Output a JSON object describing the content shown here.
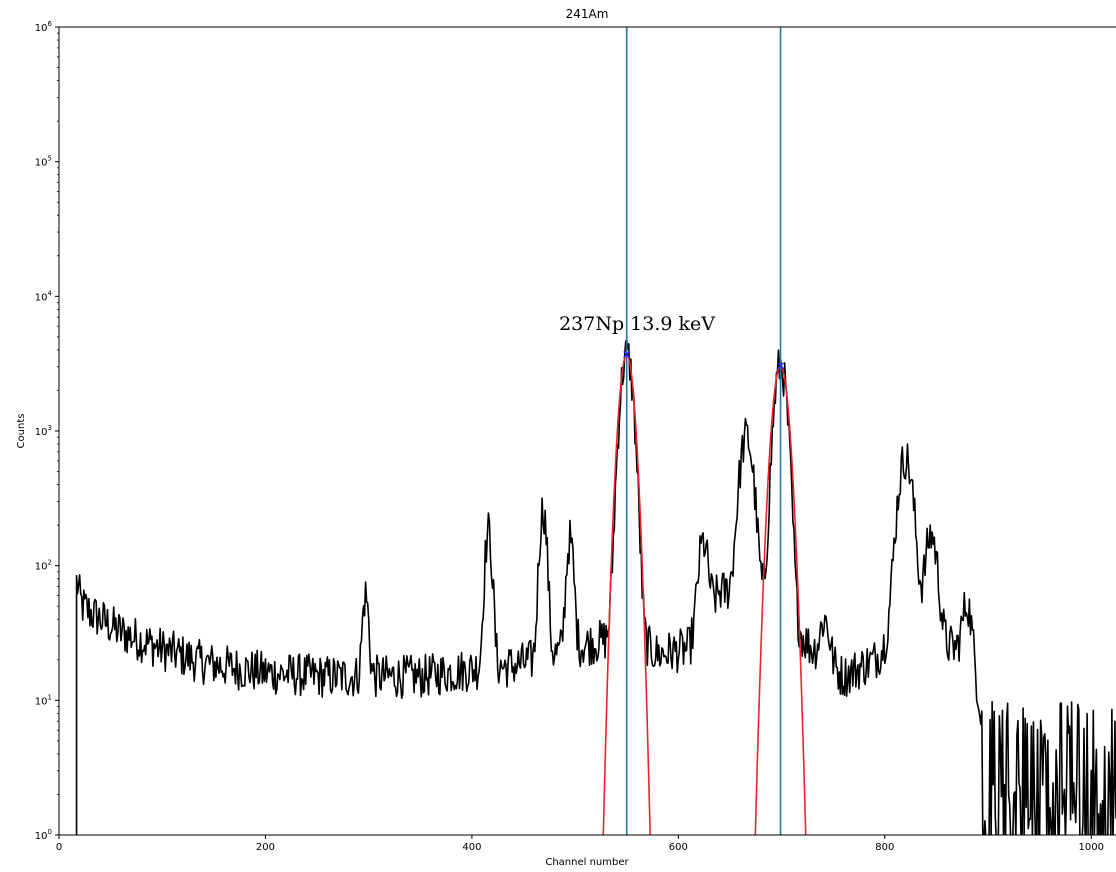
{
  "chart_data": {
    "type": "line",
    "title": "241Am",
    "xlabel": "Channel number",
    "ylabel": "Counts",
    "xlim": [
      0,
      1024
    ],
    "ylim": [
      1,
      1000000
    ],
    "yscale": "log",
    "grid": false,
    "x_ticks": [
      0,
      200,
      400,
      600,
      800,
      1000
    ],
    "x_tick_labels": [
      "0",
      "200",
      "400",
      "600",
      "800",
      "1000"
    ],
    "y_ticks": [
      1,
      10,
      100,
      1000,
      10000,
      100000,
      1000000
    ],
    "y_tick_exponents": [
      "0",
      "1",
      "2",
      "3",
      "4",
      "5",
      "6"
    ],
    "y_tick_base": "10",
    "spectrum": {
      "color": "#000000",
      "start_channel": 17,
      "background_model": [
        [
          17,
          55
        ],
        [
          30,
          45
        ],
        [
          60,
          32
        ],
        [
          100,
          24
        ],
        [
          140,
          19
        ],
        [
          200,
          16
        ],
        [
          260,
          15
        ],
        [
          300,
          15
        ],
        [
          350,
          15
        ],
        [
          400,
          17
        ],
        [
          440,
          18
        ],
        [
          480,
          22
        ],
        [
          510,
          26
        ],
        [
          530,
          28
        ],
        [
          545,
          30
        ],
        [
          560,
          28
        ],
        [
          580,
          22
        ],
        [
          610,
          24
        ],
        [
          640,
          65
        ],
        [
          660,
          60
        ],
        [
          700,
          45
        ],
        [
          730,
          24
        ],
        [
          760,
          15
        ],
        [
          790,
          20
        ],
        [
          805,
          28
        ],
        [
          840,
          30
        ],
        [
          870,
          24
        ],
        [
          880,
          25
        ],
        [
          888,
          13
        ],
        [
          900,
          5
        ],
        [
          950,
          3
        ],
        [
          1000,
          3.5
        ],
        [
          1024,
          3.5
        ]
      ],
      "peaks": [
        {
          "center": 17,
          "height": 20,
          "sigma": 2
        },
        {
          "center": 297,
          "height": 45,
          "sigma": 2.5
        },
        {
          "center": 416,
          "height": 160,
          "sigma": 3
        },
        {
          "center": 469,
          "height": 240,
          "sigma": 3
        },
        {
          "center": 495,
          "height": 130,
          "sigma": 3
        },
        {
          "center": 550,
          "height": 3700,
          "sigma": 5
        },
        {
          "center": 624,
          "height": 110,
          "sigma": 4
        },
        {
          "center": 666,
          "height": 850,
          "sigma": 5.5
        },
        {
          "center": 699,
          "height": 3050,
          "sigma": 5
        },
        {
          "center": 742,
          "height": 20,
          "sigma": 4
        },
        {
          "center": 820,
          "height": 600,
          "sigma": 6
        },
        {
          "center": 845,
          "height": 140,
          "sigma": 5
        },
        {
          "center": 880,
          "height": 28,
          "sigma": 4
        }
      ],
      "noise_amplitude": 0.18,
      "low_region_dropouts": [
        [
          900,
          1024
        ]
      ]
    },
    "fits": [
      {
        "name": "",
        "color": "#e8242a",
        "center": 550,
        "amplitude": 3700,
        "sigma": 5.6
      },
      {
        "name": "",
        "color": "#e8242a",
        "center": 699,
        "amplitude": 3050,
        "sigma": 6.1
      }
    ],
    "peak_markers": [
      {
        "x": 550,
        "y": 3700,
        "color": "#1a1aff",
        "symbol": "x"
      },
      {
        "x": 699,
        "y": 3050,
        "color": "#1a1aff",
        "symbol": "x"
      }
    ],
    "vlines": [
      {
        "x": 550,
        "color": "#1f77b4"
      },
      {
        "x": 699,
        "color": "#1f77b4"
      }
    ],
    "annotations": [
      {
        "text": "237Np 13.9 keV",
        "x": 560,
        "y": 5600
      }
    ]
  }
}
